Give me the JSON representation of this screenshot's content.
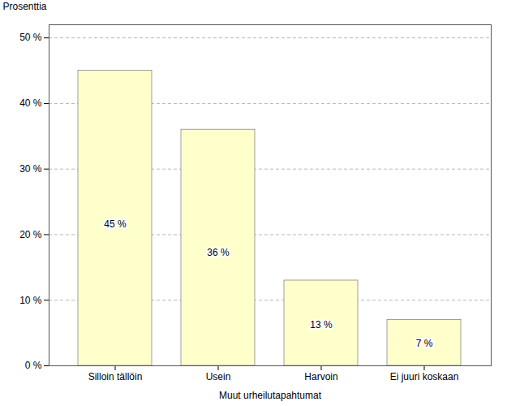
{
  "chart_data": {
    "type": "bar",
    "categories": [
      "Silloin tällöin",
      "Usein",
      "Harvoin",
      "Ei juuri koskaan"
    ],
    "values": [
      45,
      36,
      13,
      7
    ],
    "value_labels": [
      "45 %",
      "36 %",
      "13 %",
      "7 %"
    ],
    "data_labels": true,
    "color": "#FFFFCC",
    "xlabel": "Muut urheilutapahtumat",
    "ylabel": "Prosenttia",
    "ylim": [
      0,
      52
    ],
    "yticks": [
      {
        "value": 0,
        "label": "0 %"
      },
      {
        "value": 10,
        "label": "10 %"
      },
      {
        "value": 20,
        "label": "20 %"
      },
      {
        "value": 30,
        "label": "30 %"
      },
      {
        "value": 40,
        "label": "40 %"
      },
      {
        "value": 50,
        "label": "50 %"
      }
    ],
    "grid": true
  }
}
